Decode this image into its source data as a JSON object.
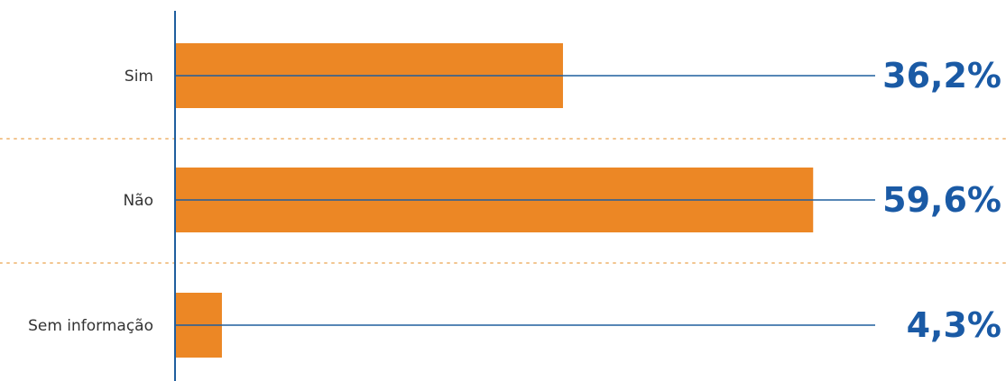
{
  "chart_data": {
    "type": "bar",
    "orientation": "horizontal",
    "categories": [
      "Sim",
      "Não",
      "Sem informação"
    ],
    "values": [
      36.2,
      59.6,
      4.3
    ],
    "value_labels": [
      "36,2%",
      "59,6%",
      "4,3%"
    ],
    "title": "",
    "xlabel": "",
    "ylabel": "",
    "xlim": [
      0,
      60
    ],
    "grid": false,
    "legend": "none",
    "colors": {
      "bar": "#EC8725",
      "axis": "#1F5E9E",
      "guide_line": "#1F5E9E",
      "value_label": "#1A5AA5",
      "category_label": "#333333",
      "separator": "#F2C58F"
    }
  }
}
